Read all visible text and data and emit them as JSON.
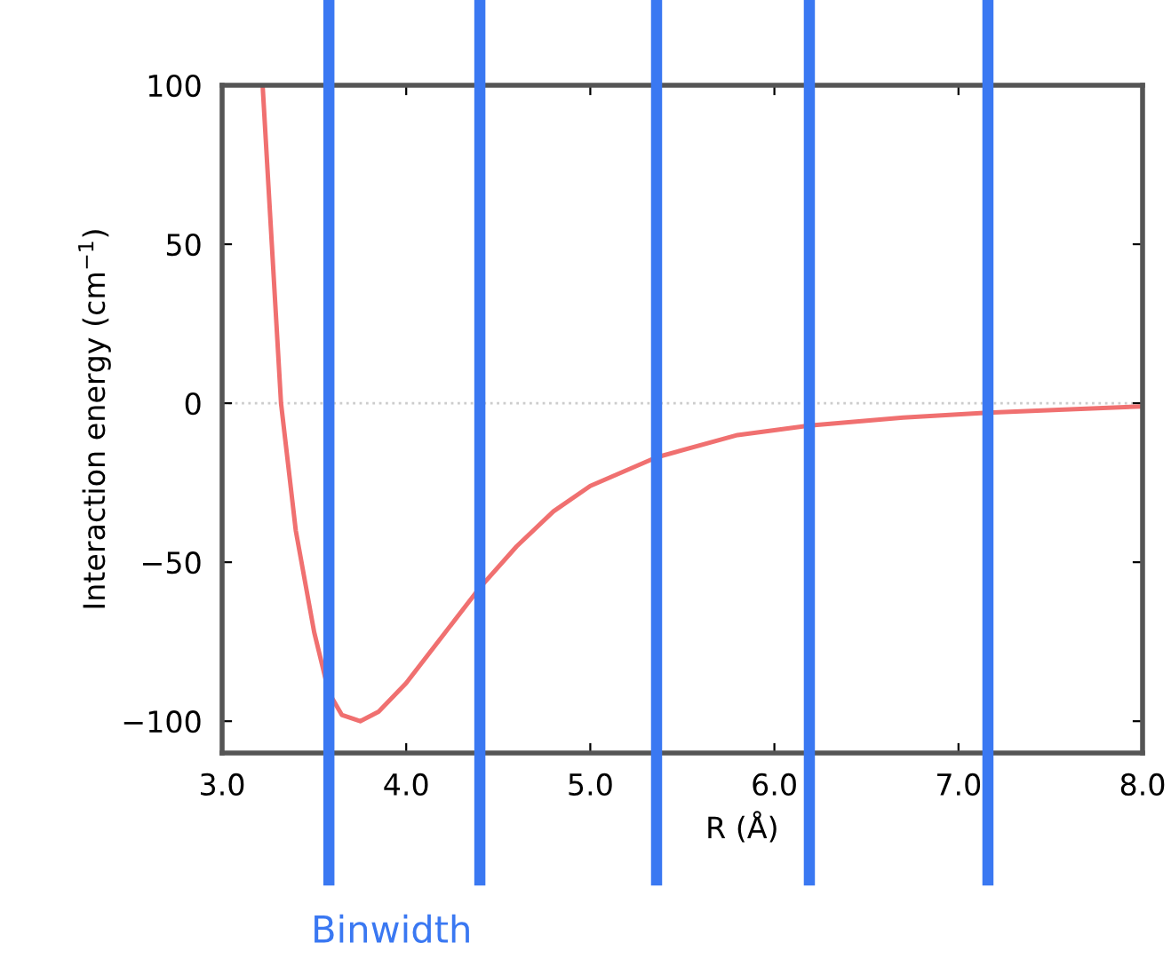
{
  "chart_data": {
    "type": "line",
    "xlabel": "R (Å)",
    "ylabel": "Interaction energy (cm$^{−1}$)",
    "x": [
      3.22,
      3.27,
      3.32,
      3.4,
      3.5,
      3.58,
      3.65,
      3.75,
      3.85,
      4.0,
      4.2,
      4.4,
      4.6,
      4.8,
      5.0,
      5.36,
      5.8,
      6.19,
      6.7,
      7.16,
      8.0
    ],
    "series": [
      {
        "color": "#f07070",
        "values": [
          100,
          50,
          0,
          -40,
          -72,
          -91,
          -98,
          -100,
          -97,
          -88,
          -73,
          -58,
          -45,
          -34,
          -26,
          -17,
          -10,
          -7,
          -4.5,
          -3,
          -1
        ]
      }
    ],
    "xlim": [
      3.0,
      8.0
    ],
    "ylim": [
      -110,
      100
    ],
    "xticks": [
      {
        "value": 3,
        "label": "3.0"
      },
      {
        "value": 4,
        "label": "4.0"
      },
      {
        "value": 5,
        "label": "5.0"
      },
      {
        "value": 6,
        "label": "6.0"
      },
      {
        "value": 7,
        "label": "7.0"
      },
      {
        "value": 8,
        "label": "8.0"
      }
    ],
    "yticks": [
      {
        "value": -100,
        "label": "−100"
      },
      {
        "value": -50,
        "label": "−50"
      },
      0,
      50,
      100
    ],
    "ref_lines": [
      {
        "axis": "y",
        "value": 0,
        "color": "#cccccc",
        "line_style": "dotted"
      },
      {
        "axis": "x",
        "value": 3.58,
        "color": "#3a78f2"
      },
      {
        "axis": "x",
        "value": 4.4,
        "color": "#3a78f2"
      },
      {
        "axis": "x",
        "value": 5.36,
        "color": "#3a78f2"
      },
      {
        "axis": "x",
        "value": 6.19,
        "color": "#3a78f2"
      },
      {
        "axis": "x",
        "value": 7.16,
        "color": "#3a78f2"
      }
    ],
    "annotations": [
      "Binwidth"
    ],
    "grid": false,
    "legend": false,
    "marker": "none",
    "line_style": "solid"
  }
}
